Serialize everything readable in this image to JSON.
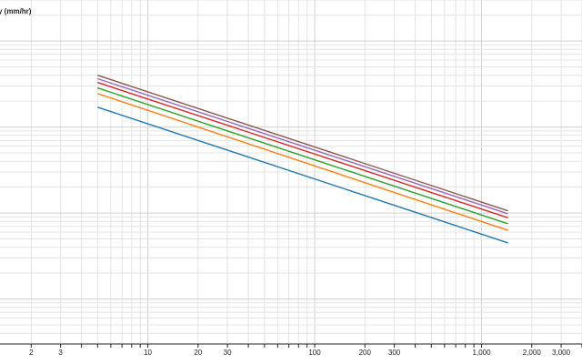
{
  "chart_data": {
    "type": "line",
    "ylabel": "y (mm/hr)",
    "xscale": "log",
    "yscale": "log",
    "xlim": [
      1.3,
      4000
    ],
    "ylim": [
      3,
      30000
    ],
    "x_tick_labels": [
      {
        "value": 2,
        "label": "2"
      },
      {
        "value": 3,
        "label": "3"
      },
      {
        "value": 10,
        "label": "10"
      },
      {
        "value": 20,
        "label": "20"
      },
      {
        "value": 30,
        "label": "30"
      },
      {
        "value": 100,
        "label": "100"
      },
      {
        "value": 200,
        "label": "200"
      },
      {
        "value": 300,
        "label": "300"
      },
      {
        "value": 1000,
        "label": "1,000"
      },
      {
        "value": 2000,
        "label": "2,000"
      },
      {
        "value": 3000,
        "label": "3,000"
      }
    ],
    "grid": true,
    "series": [
      {
        "color": "#1f77b4",
        "x": [
          5,
          1440
        ],
        "y": [
          1700,
          45
        ]
      },
      {
        "color": "#ff7f0e",
        "x": [
          5,
          1440
        ],
        "y": [
          2450,
          63
        ]
      },
      {
        "color": "#2ca02c",
        "x": [
          5,
          1440
        ],
        "y": [
          2850,
          75
        ]
      },
      {
        "color": "#d62728",
        "x": [
          5,
          1440
        ],
        "y": [
          3300,
          88
        ]
      },
      {
        "color": "#9467bd",
        "x": [
          5,
          1440
        ],
        "y": [
          3650,
          98
        ]
      },
      {
        "color": "#8c564b",
        "x": [
          5,
          1440
        ],
        "y": [
          4000,
          106
        ]
      }
    ]
  }
}
